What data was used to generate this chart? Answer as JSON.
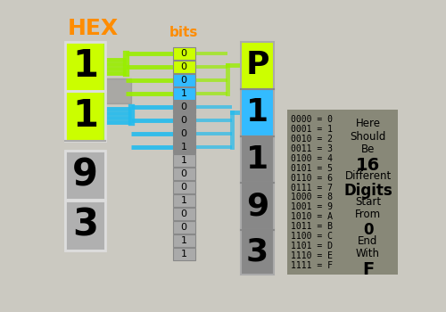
{
  "bg_color": "#cbc9c1",
  "title": "HEX",
  "bits_label": "bits",
  "hex_digits": [
    "1",
    "1",
    "9",
    "3"
  ],
  "p_digits": [
    "P",
    "1",
    "1",
    "9",
    "3"
  ],
  "p_digit_colors": [
    "#ccff00",
    "#33bbff",
    "#888888",
    "#888888",
    "#888888"
  ],
  "bits_values": [
    "0",
    "0",
    "0",
    "1",
    "0",
    "0",
    "0",
    "1",
    "1",
    "0",
    "0",
    "1",
    "0",
    "0",
    "1",
    "1"
  ],
  "bit_colors": [
    "#ccff00",
    "#ccff00",
    "#33bbff",
    "#33bbff",
    "#888888",
    "#888888",
    "#888888",
    "#888888",
    "#aaaaaa",
    "#aaaaaa",
    "#aaaaaa",
    "#aaaaaa",
    "#aaaaaa",
    "#aaaaaa",
    "#aaaaaa",
    "#aaaaaa"
  ],
  "hex_table": [
    "0000 = 0",
    "0001 = 1",
    "0010 = 2",
    "0011 = 3",
    "0100 = 4",
    "0101 = 5",
    "0110 = 6",
    "0111 = 7",
    "1000 = 8",
    "1001 = 9",
    "1010 = A",
    "1011 = B",
    "1100 = C",
    "1101 = D",
    "1110 = E",
    "1111 = F"
  ],
  "info_text": [
    "Here",
    "Should",
    "Be",
    "16",
    "Different",
    "Digits",
    "Start",
    "From",
    "0",
    "End",
    "With",
    "F"
  ],
  "info_bold": [
    false,
    false,
    false,
    true,
    false,
    true,
    false,
    false,
    true,
    false,
    false,
    true
  ]
}
